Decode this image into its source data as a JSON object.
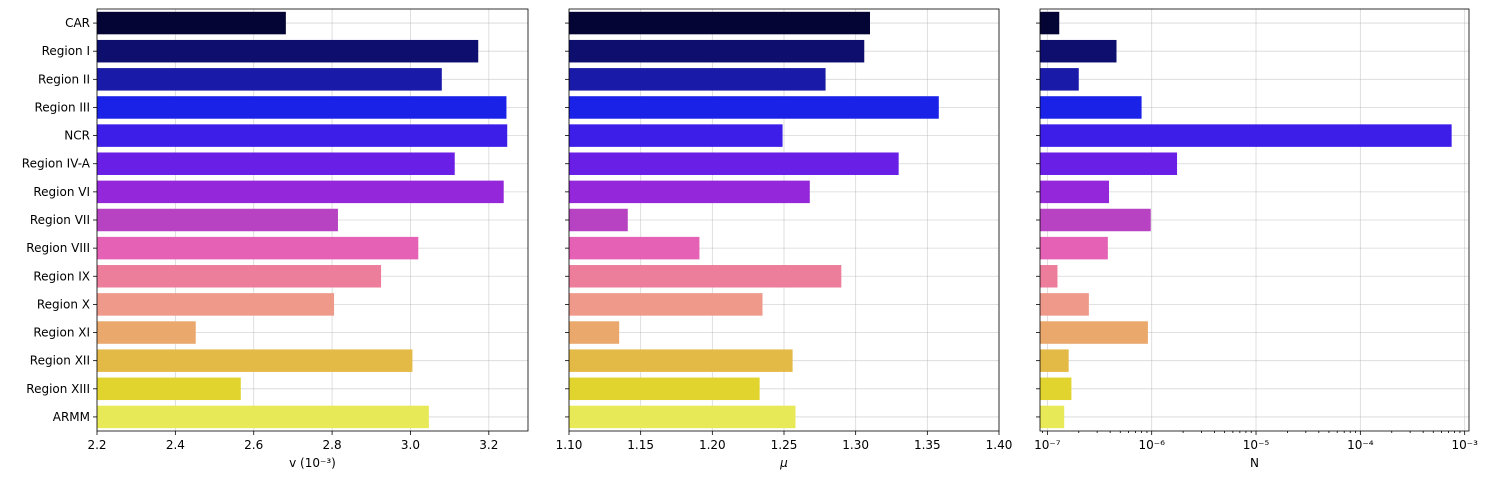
{
  "chart_data": [
    {
      "type": "bar",
      "orientation": "horizontal",
      "categories": [
        "CAR",
        "Region I",
        "Region II",
        "Region III",
        "NCR",
        "Region IV-A",
        "Region VI",
        "Region VII",
        "Region VIII",
        "Region IX",
        "Region X",
        "Region XI",
        "Region XII",
        "Region XIII",
        "ARMM"
      ],
      "values": [
        2.682,
        3.173,
        3.08,
        3.245,
        3.247,
        3.113,
        3.238,
        2.815,
        3.02,
        2.925,
        2.805,
        2.452,
        3.005,
        2.567,
        3.047
      ],
      "xlabel": "v  (10⁻³)",
      "xlim": [
        2.2,
        3.3
      ],
      "xticks": [
        2.2,
        2.4,
        2.6,
        2.8,
        3.0,
        3.2
      ],
      "xtick_labels": [
        "2.2",
        "2.4",
        "2.6",
        "2.8",
        "3.0",
        "3.2"
      ],
      "grid": true
    },
    {
      "type": "bar",
      "orientation": "horizontal",
      "categories": [
        "CAR",
        "Region I",
        "Region II",
        "Region III",
        "NCR",
        "Region IV-A",
        "Region VI",
        "Region VII",
        "Region VIII",
        "Region IX",
        "Region X",
        "Region XI",
        "Region XII",
        "Region XIII",
        "ARMM"
      ],
      "values": [
        1.31,
        1.306,
        1.279,
        1.358,
        1.249,
        1.33,
        1.268,
        1.141,
        1.191,
        1.29,
        1.235,
        1.135,
        1.256,
        1.233,
        1.258
      ],
      "xlabel": "μ",
      "xlim": [
        1.1,
        1.4
      ],
      "xticks": [
        1.1,
        1.15,
        1.2,
        1.25,
        1.3,
        1.35,
        1.4
      ],
      "xtick_labels": [
        "1.10",
        "1.15",
        "1.20",
        "1.25",
        "1.30",
        "1.35",
        "1.40"
      ],
      "grid": true
    },
    {
      "type": "bar",
      "orientation": "horizontal",
      "x_scale": "log",
      "categories": [
        "CAR",
        "Region I",
        "Region II",
        "Region III",
        "NCR",
        "Region IV-A",
        "Region VI",
        "Region VII",
        "Region VIII",
        "Region IX",
        "Region X",
        "Region XI",
        "Region XII",
        "Region XIII",
        "ARMM"
      ],
      "values": [
        1.3e-07,
        4.6e-07,
        2e-07,
        8e-07,
        0.00075,
        1.75e-06,
        3.9e-07,
        9.8e-07,
        3.8e-07,
        1.25e-07,
        2.5e-07,
        9.2e-07,
        1.6e-07,
        1.7e-07,
        1.45e-07
      ],
      "xlabel": "N",
      "xlim": [
        8.5e-08,
        0.0011
      ],
      "xticks": [
        1e-07,
        1e-06,
        1e-05,
        0.0001,
        0.001
      ],
      "xtick_labels": [
        "10⁻⁷",
        "10⁻⁶",
        "10⁻⁵",
        "10⁻⁴",
        "10⁻³"
      ],
      "grid": true
    }
  ],
  "colors": [
    "#050535",
    "#0e0e6e",
    "#1a1aa8",
    "#1b22e8",
    "#3c1ee8",
    "#6a1fe6",
    "#9427d9",
    "#b843c2",
    "#e561b6",
    "#ec7e9c",
    "#ef998a",
    "#eba86c",
    "#e4ba47",
    "#e1d42f",
    "#e8e956"
  ]
}
